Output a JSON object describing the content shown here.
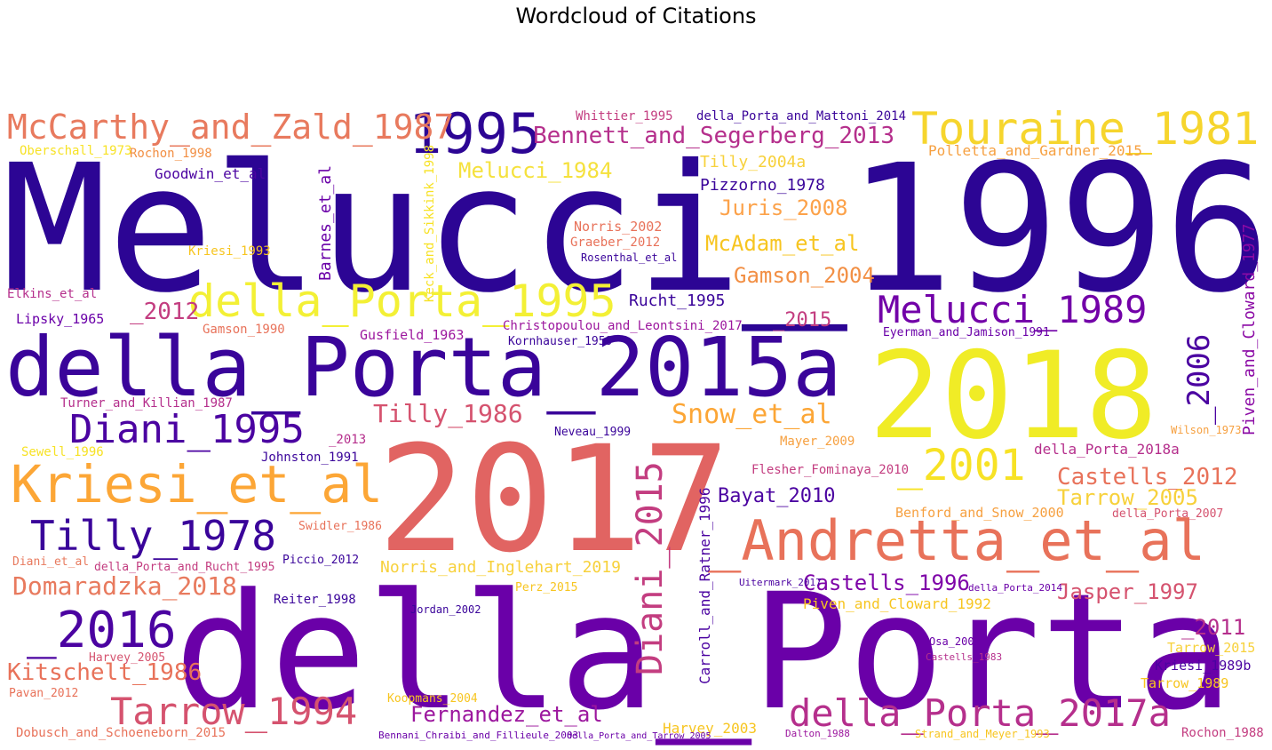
{
  "title": "Wordcloud of Citations",
  "palette": {
    "indigo": "#2c0594",
    "purple": "#6a00a8",
    "magenta": "#b12a90",
    "rose": "#e16462",
    "orange": "#fca636",
    "yellow": "#f0f921"
  },
  "words": [
    {
      "text": "Melucci_1996",
      "color": "#2c0594"
    },
    {
      "text": "della_Porta",
      "color": "#6a00a8"
    },
    {
      "text": "2017",
      "color": "#e16462"
    },
    {
      "text": "2018",
      "color": "#f0ec26"
    },
    {
      "text": "della_Porta_2015a",
      "color": "#3a049a"
    },
    {
      "text": "1995",
      "color": "#2c0594"
    },
    {
      "text": "Touraine_1981",
      "color": "#f6d52d"
    },
    {
      "text": "McCarthy_and_Zald_1987",
      "color": "#e87a5e"
    },
    {
      "text": "della_Porta_1995",
      "color": "#f3f035"
    },
    {
      "text": "Kriesi_et_al",
      "color": "#fca636"
    },
    {
      "text": "_Andretta_et_al",
      "color": "#e8725a"
    },
    {
      "text": "Tilly_1978",
      "color": "#3a049a"
    },
    {
      "text": "Diani_1995",
      "color": "#4b03a1"
    },
    {
      "text": "Melucci_1989",
      "color": "#7201a8"
    },
    {
      "text": "della_Porta_2017a",
      "color": "#b52f8c"
    },
    {
      "text": "Tarrow_1994",
      "color": "#d5536f"
    },
    {
      "text": "_2016",
      "color": "#4b03a1"
    },
    {
      "text": "_2001",
      "color": "#f7e225"
    },
    {
      "text": "Bennett_and_Segerberg_2013",
      "color": "#b52f8c"
    },
    {
      "text": "Diani_2015",
      "color": "#c33d80"
    },
    {
      "text": "Domaradzka_2018",
      "color": "#e87a5e"
    },
    {
      "text": "Castells_2012",
      "color": "#e8725a"
    },
    {
      "text": "Castells_1996",
      "color": "#7e03a8"
    },
    {
      "text": "Kitschelt_1986",
      "color": "#e8725a"
    },
    {
      "text": "Snow_et_al",
      "color": "#fca636"
    },
    {
      "text": "Tilly_1986",
      "color": "#d5536f"
    },
    {
      "text": "Melucci_1984",
      "color": "#f5e13c"
    },
    {
      "text": "Juris_2008",
      "color": "#fca24a"
    },
    {
      "text": "McAdam_et_al",
      "color": "#f7c520"
    },
    {
      "text": "Gamson_2004",
      "color": "#f28f44"
    },
    {
      "text": "Jasper_1997",
      "color": "#d5536f"
    },
    {
      "text": "Tarrow_2005",
      "color": "#f7d13b"
    },
    {
      "text": "Fernandez_et_al",
      "color": "#9c179e"
    },
    {
      "text": "Bayat_2010",
      "color": "#4b03a1"
    },
    {
      "text": "_2006",
      "color": "#4b03a1"
    },
    {
      "text": "Piven_and_Cloward_1977",
      "color": "#8b0aa5"
    },
    {
      "text": "Carroll_and_Ratner_1996",
      "color": "#4b03a1"
    },
    {
      "text": "Tilly_2004a",
      "color": "#f7d13b"
    },
    {
      "text": "Pizzorno_1978",
      "color": "#3a049a"
    },
    {
      "text": "Rucht_1995",
      "color": "#3a049a"
    },
    {
      "text": "_2015",
      "color": "#c33d80"
    },
    {
      "text": "_2012",
      "color": "#c33d80"
    },
    {
      "text": "_2011",
      "color": "#b52f8c"
    },
    {
      "text": "Harvey_2003",
      "color": "#f7c520"
    },
    {
      "text": "Rochon_1988",
      "color": "#c33d80"
    },
    {
      "text": "Norris_and_Inglehart_2019",
      "color": "#f7d13b"
    },
    {
      "text": "Piven_and_Cloward_1992",
      "color": "#f7c520"
    },
    {
      "text": "Polletta_and_Gardner_2015",
      "color": "#f6a040"
    },
    {
      "text": "Whittier_1995",
      "color": "#c33d80"
    },
    {
      "text": "della_Porta_and_Mattoni_2014",
      "color": "#3a049a"
    },
    {
      "text": "Christopoulou_and_Leontsini_2017",
      "color": "#9c179e"
    },
    {
      "text": "Goodwin_et_al",
      "color": "#4b03a1"
    },
    {
      "text": "Oberschall_1973",
      "color": "#f7e225"
    },
    {
      "text": "Rochon_1998",
      "color": "#f28f44"
    },
    {
      "text": "Barnes_et_al",
      "color": "#6a00a8"
    },
    {
      "text": "Keck_and_Sikkink_1998",
      "color": "#f7e225"
    },
    {
      "text": "Norris_2002",
      "color": "#e8725a"
    },
    {
      "text": "Graeber_2012",
      "color": "#e8725a"
    },
    {
      "text": "Rosenthal_et_al",
      "color": "#3a049a"
    },
    {
      "text": "Kriesi_1993",
      "color": "#f7c520"
    },
    {
      "text": "Elkins_et_al",
      "color": "#b52f8c"
    },
    {
      "text": "Lipsky_1965",
      "color": "#6a00a8"
    },
    {
      "text": "Gusfield_1963",
      "color": "#9c179e"
    },
    {
      "text": "Kornhauser_1959",
      "color": "#3a049a"
    },
    {
      "text": "Gamson_1990",
      "color": "#e8725a"
    },
    {
      "text": "Eyerman_and_Jamison_1991",
      "color": "#6a00a8"
    },
    {
      "text": "Turner_and_Killian_1987",
      "color": "#b52f8c"
    },
    {
      "text": "Mayer_2009",
      "color": "#f6a040"
    },
    {
      "text": "Neveau_1999",
      "color": "#3a049a"
    },
    {
      "text": "Johnston_1991",
      "color": "#3a049a"
    },
    {
      "text": "_2013",
      "color": "#b52f8c"
    },
    {
      "text": "Sewell_1996",
      "color": "#f7e225"
    },
    {
      "text": "Flesher_Fominaya_2010",
      "color": "#c33d80"
    },
    {
      "text": "della_Porta_2018a",
      "color": "#b52f8c"
    },
    {
      "text": "Benford_and_Snow_2000",
      "color": "#f6a040"
    },
    {
      "text": "della_Porta_2007",
      "color": "#d5536f"
    },
    {
      "text": "Swidler_1986",
      "color": "#e8725a"
    },
    {
      "text": "Piccio_2012",
      "color": "#3a049a"
    },
    {
      "text": "della_Porta_and_Rucht_1995",
      "color": "#c33d80"
    },
    {
      "text": "Diani_et_al",
      "color": "#e87a5e"
    },
    {
      "text": "Perz_2015",
      "color": "#f7c520"
    },
    {
      "text": "Reiter_1998",
      "color": "#3a049a"
    },
    {
      "text": "Jordan_2002",
      "color": "#3a049a"
    },
    {
      "text": "Koopmans_2004",
      "color": "#f7c520"
    },
    {
      "text": "Harvey_2005",
      "color": "#d5536f"
    },
    {
      "text": "Pavan_2012",
      "color": "#e8725a"
    },
    {
      "text": "Dobusch_and_Schoeneborn_2015",
      "color": "#e8725a"
    },
    {
      "text": "Bennani_Chraibi_and_Fillieule_2003",
      "color": "#6a00a8"
    },
    {
      "text": "della_Porta_and_Tarrow_2005",
      "color": "#6a00a8"
    },
    {
      "text": "Tarrow_1989",
      "color": "#f7c520"
    },
    {
      "text": "Tarrow_2015",
      "color": "#f7d13b"
    },
    {
      "text": "Kriesi_1989b",
      "color": "#4b03a1"
    },
    {
      "text": "Strand_and_Meyer_1993",
      "color": "#f7c520"
    },
    {
      "text": "Dalton_1988",
      "color": "#9c179e"
    },
    {
      "text": "Uitermark_2017",
      "color": "#4b03a1"
    },
    {
      "text": "della_Porta_2014",
      "color": "#6a00a8"
    },
    {
      "text": "Osa_2003",
      "color": "#6a00a8"
    },
    {
      "text": "Castells_1983",
      "color": "#b52f8c"
    },
    {
      "text": "Wilson_1973",
      "color": "#f6a040"
    }
  ]
}
